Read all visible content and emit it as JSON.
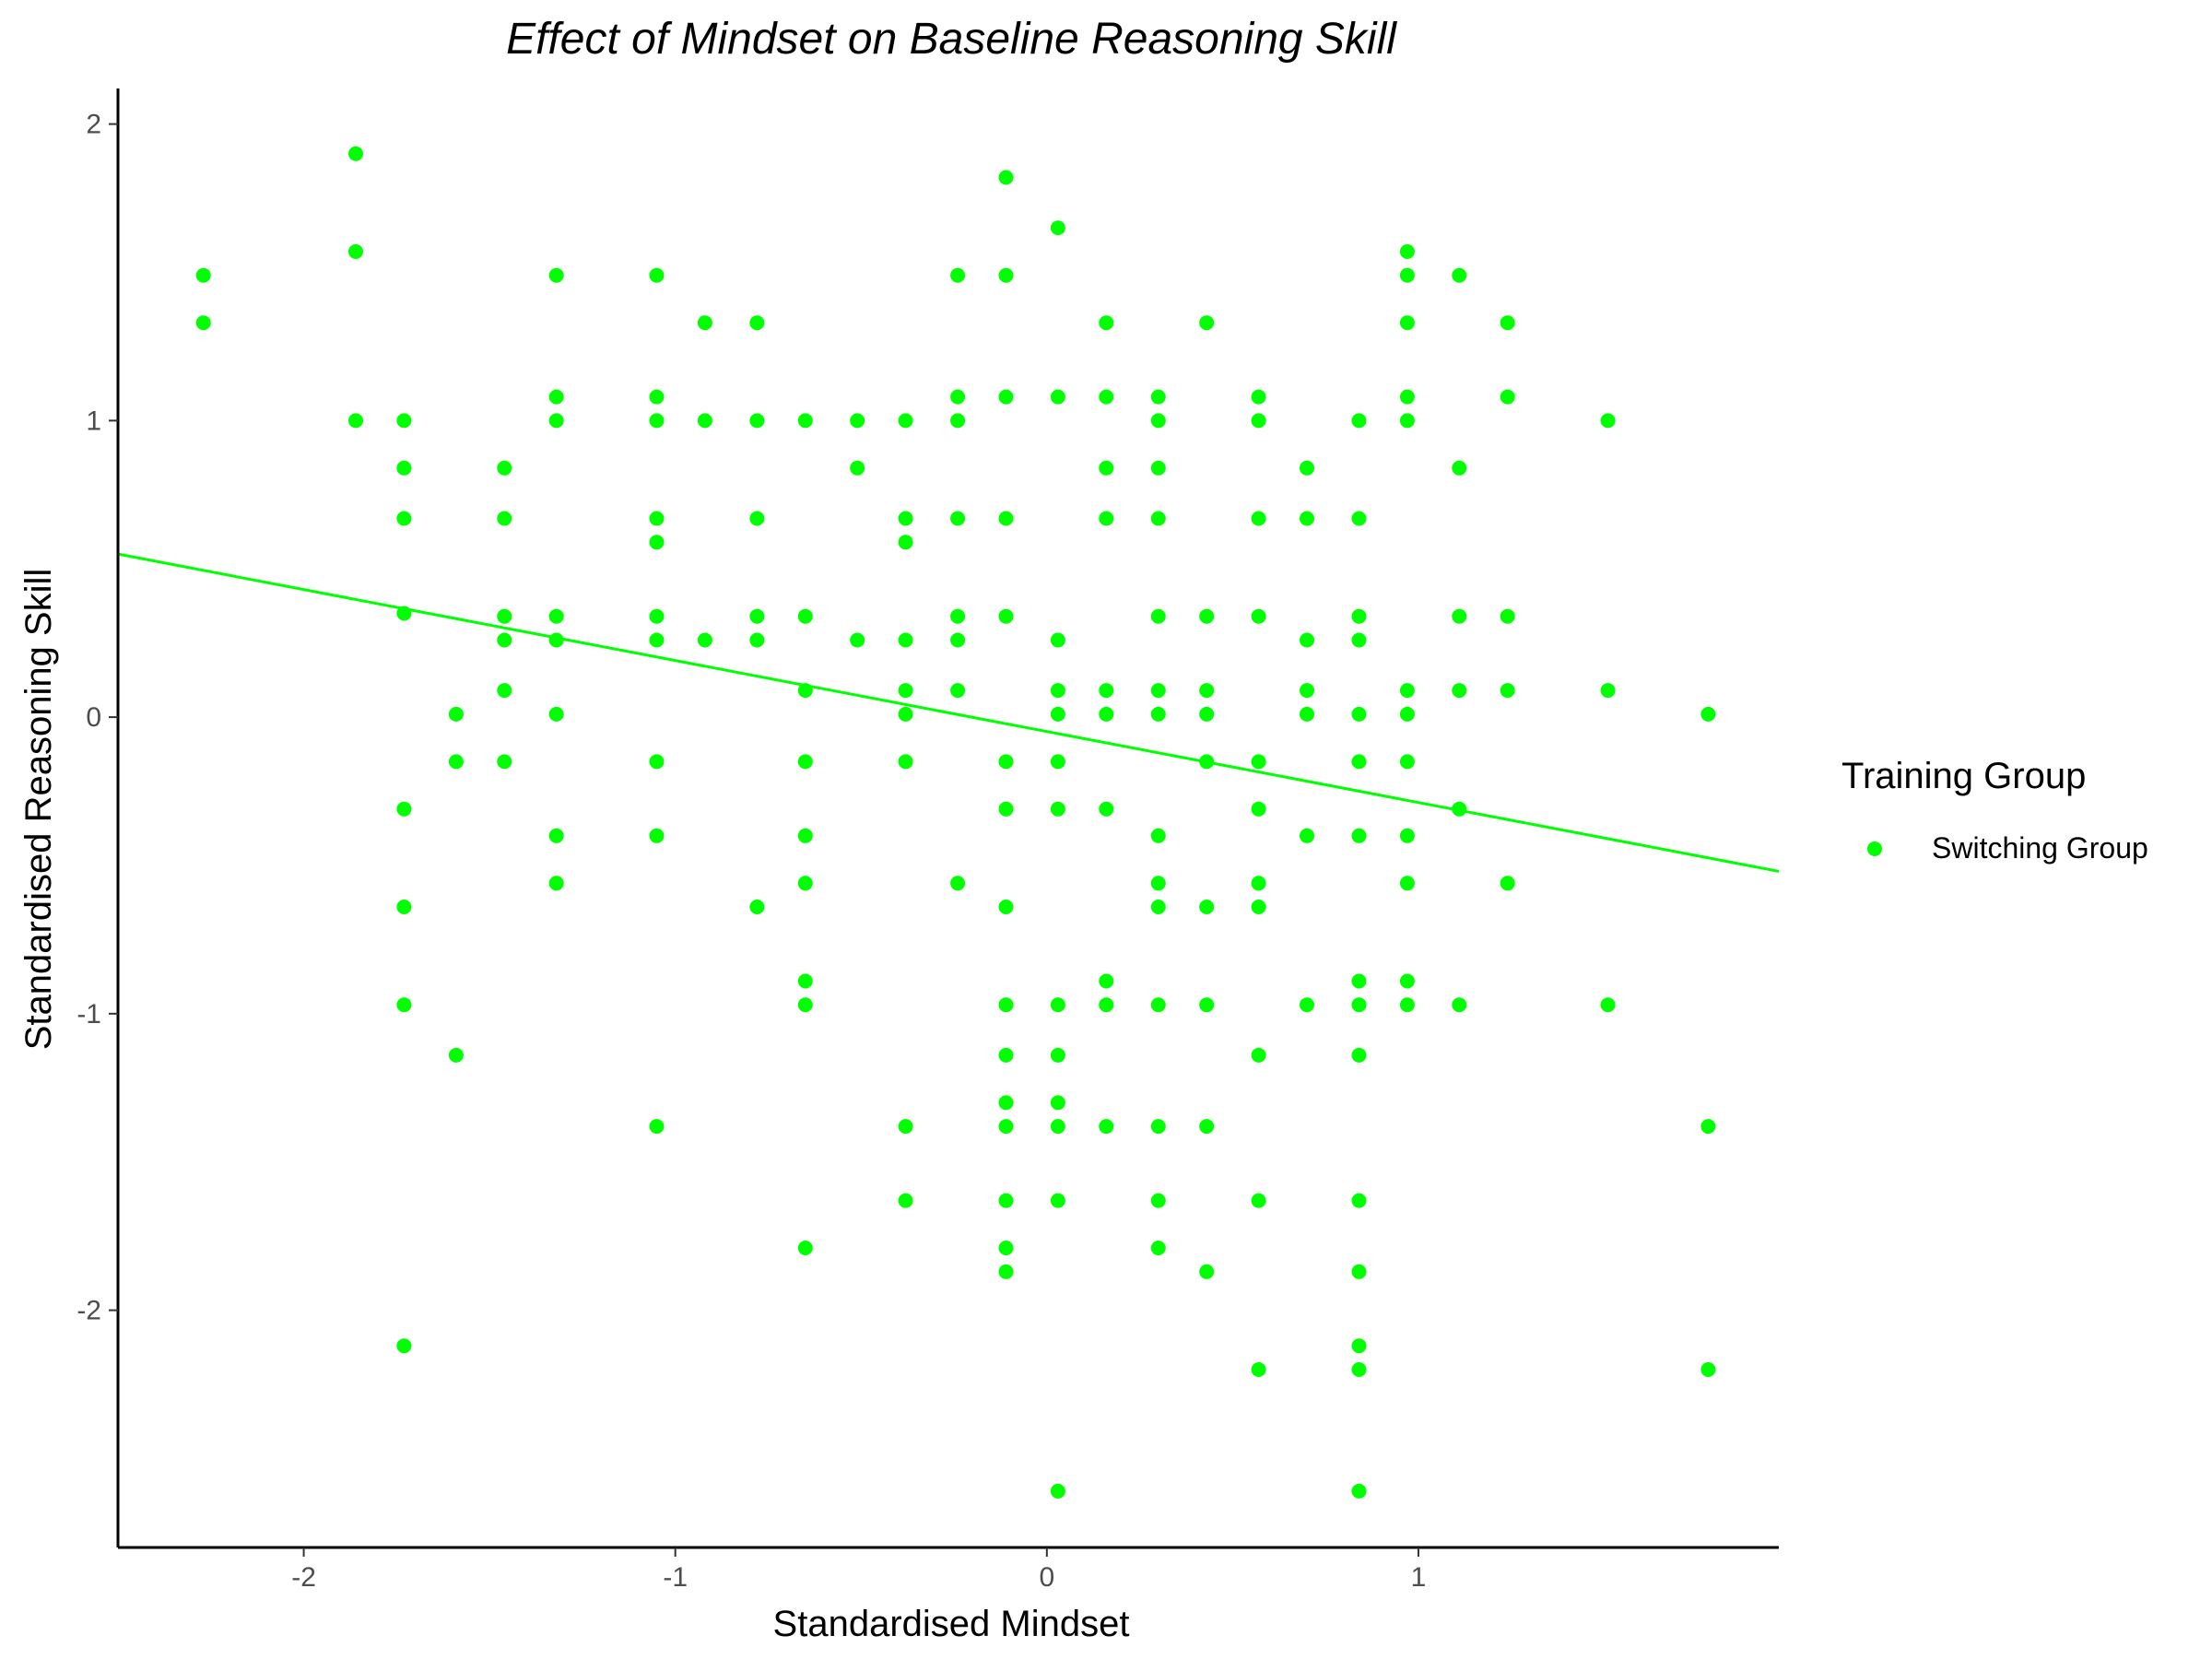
{
  "chart_data": {
    "type": "scatter",
    "title": "Effect of Mindset on Baseline Reasoning Skill",
    "xlabel": "Standardised Mindset",
    "ylabel": "Standardised Reasoning Skill",
    "xlim": [
      -2.5,
      1.97
    ],
    "ylim": [
      -2.8,
      2.12
    ],
    "x_ticks": [
      -2,
      -1,
      0,
      1
    ],
    "x_tick_labels": [
      "-2",
      "-1",
      "0",
      "1"
    ],
    "y_ticks": [
      -2,
      -1,
      0,
      1,
      2
    ],
    "y_tick_labels": [
      "-2",
      "-1",
      "0",
      "1",
      "2"
    ],
    "grid": false,
    "legend": {
      "title": "Training Group",
      "position": "right",
      "entries": [
        "Switching Group"
      ]
    },
    "series": [
      {
        "name": "Switching Group",
        "color": "#00ff00",
        "points": [
          [
            -2.27,
            1.49
          ],
          [
            -2.27,
            1.33
          ],
          [
            -1.86,
            1.9
          ],
          [
            -1.86,
            1.57
          ],
          [
            -1.86,
            1.0
          ],
          [
            -1.73,
            1.0
          ],
          [
            -1.73,
            0.84
          ],
          [
            -1.73,
            0.67
          ],
          [
            -1.73,
            0.35
          ],
          [
            -1.73,
            -0.31
          ],
          [
            -1.73,
            -0.64
          ],
          [
            -1.73,
            -0.97
          ],
          [
            -1.73,
            -2.12
          ],
          [
            -1.59,
            0.01
          ],
          [
            -1.59,
            -0.15
          ],
          [
            -1.59,
            -1.14
          ],
          [
            -1.46,
            0.84
          ],
          [
            -1.46,
            0.67
          ],
          [
            -1.46,
            0.34
          ],
          [
            -1.46,
            0.26
          ],
          [
            -1.46,
            0.09
          ],
          [
            -1.46,
            -0.15
          ],
          [
            -1.32,
            1.49
          ],
          [
            -1.32,
            1.08
          ],
          [
            -1.32,
            1.0
          ],
          [
            -1.32,
            0.34
          ],
          [
            -1.32,
            0.26
          ],
          [
            -1.32,
            0.01
          ],
          [
            -1.32,
            -0.4
          ],
          [
            -1.32,
            -0.56
          ],
          [
            -1.05,
            1.49
          ],
          [
            -1.05,
            1.08
          ],
          [
            -1.05,
            1.0
          ],
          [
            -1.05,
            0.67
          ],
          [
            -1.05,
            0.59
          ],
          [
            -1.05,
            0.34
          ],
          [
            -1.05,
            0.26
          ],
          [
            -1.05,
            -0.15
          ],
          [
            -1.05,
            -0.4
          ],
          [
            -1.05,
            -1.38
          ],
          [
            -0.92,
            1.33
          ],
          [
            -0.92,
            1.0
          ],
          [
            -0.92,
            0.26
          ],
          [
            -0.78,
            1.33
          ],
          [
            -0.78,
            1.0
          ],
          [
            -0.78,
            0.67
          ],
          [
            -0.78,
            0.34
          ],
          [
            -0.78,
            0.26
          ],
          [
            -0.78,
            -0.64
          ],
          [
            -0.65,
            1.0
          ],
          [
            -0.65,
            0.34
          ],
          [
            -0.65,
            0.09
          ],
          [
            -0.65,
            -0.15
          ],
          [
            -0.65,
            -0.4
          ],
          [
            -0.65,
            -0.56
          ],
          [
            -0.65,
            -0.89
          ],
          [
            -0.65,
            -0.97
          ],
          [
            -0.65,
            -1.79
          ],
          [
            -0.51,
            1.0
          ],
          [
            -0.51,
            0.84
          ],
          [
            -0.51,
            0.26
          ],
          [
            -0.38,
            1.0
          ],
          [
            -0.38,
            0.67
          ],
          [
            -0.38,
            0.59
          ],
          [
            -0.38,
            0.26
          ],
          [
            -0.38,
            0.09
          ],
          [
            -0.38,
            0.01
          ],
          [
            -0.38,
            -0.15
          ],
          [
            -0.38,
            -1.38
          ],
          [
            -0.38,
            -1.63
          ],
          [
            -0.24,
            1.49
          ],
          [
            -0.24,
            1.08
          ],
          [
            -0.24,
            1.0
          ],
          [
            -0.24,
            0.67
          ],
          [
            -0.24,
            0.34
          ],
          [
            -0.24,
            0.26
          ],
          [
            -0.24,
            0.09
          ],
          [
            -0.24,
            -0.56
          ],
          [
            -0.11,
            1.82
          ],
          [
            -0.11,
            1.49
          ],
          [
            -0.11,
            1.08
          ],
          [
            -0.11,
            0.67
          ],
          [
            -0.11,
            0.34
          ],
          [
            -0.11,
            -0.15
          ],
          [
            -0.11,
            -0.31
          ],
          [
            -0.11,
            -0.64
          ],
          [
            -0.11,
            -0.97
          ],
          [
            -0.11,
            -1.14
          ],
          [
            -0.11,
            -1.3
          ],
          [
            -0.11,
            -1.38
          ],
          [
            -0.11,
            -1.63
          ],
          [
            -0.11,
            -1.79
          ],
          [
            -0.11,
            -1.87
          ],
          [
            0.03,
            1.65
          ],
          [
            0.03,
            1.08
          ],
          [
            0.03,
            0.26
          ],
          [
            0.03,
            0.09
          ],
          [
            0.03,
            0.01
          ],
          [
            0.03,
            -0.15
          ],
          [
            0.03,
            -0.31
          ],
          [
            0.03,
            -0.97
          ],
          [
            0.03,
            -1.14
          ],
          [
            0.03,
            -1.3
          ],
          [
            0.03,
            -1.38
          ],
          [
            0.03,
            -1.63
          ],
          [
            0.03,
            -2.61
          ],
          [
            0.16,
            1.33
          ],
          [
            0.16,
            1.08
          ],
          [
            0.16,
            0.84
          ],
          [
            0.16,
            0.67
          ],
          [
            0.16,
            0.09
          ],
          [
            0.16,
            0.01
          ],
          [
            0.16,
            -0.31
          ],
          [
            0.16,
            -0.89
          ],
          [
            0.16,
            -0.97
          ],
          [
            0.16,
            -1.38
          ],
          [
            0.3,
            1.08
          ],
          [
            0.3,
            1.0
          ],
          [
            0.3,
            0.84
          ],
          [
            0.3,
            0.67
          ],
          [
            0.3,
            0.34
          ],
          [
            0.3,
            0.09
          ],
          [
            0.3,
            0.01
          ],
          [
            0.3,
            -0.4
          ],
          [
            0.3,
            -0.56
          ],
          [
            0.3,
            -0.64
          ],
          [
            0.3,
            -0.97
          ],
          [
            0.3,
            -1.38
          ],
          [
            0.3,
            -1.63
          ],
          [
            0.3,
            -1.79
          ],
          [
            0.43,
            1.33
          ],
          [
            0.43,
            0.34
          ],
          [
            0.43,
            0.09
          ],
          [
            0.43,
            0.01
          ],
          [
            0.43,
            -0.15
          ],
          [
            0.43,
            -0.64
          ],
          [
            0.43,
            -0.97
          ],
          [
            0.43,
            -1.38
          ],
          [
            0.43,
            -1.87
          ],
          [
            0.57,
            1.08
          ],
          [
            0.57,
            1.0
          ],
          [
            0.57,
            0.67
          ],
          [
            0.57,
            0.34
          ],
          [
            0.57,
            -0.15
          ],
          [
            0.57,
            -0.31
          ],
          [
            0.57,
            -0.56
          ],
          [
            0.57,
            -0.64
          ],
          [
            0.57,
            -1.14
          ],
          [
            0.57,
            -1.63
          ],
          [
            0.57,
            -2.2
          ],
          [
            0.7,
            0.84
          ],
          [
            0.7,
            0.67
          ],
          [
            0.7,
            0.26
          ],
          [
            0.7,
            0.09
          ],
          [
            0.7,
            0.01
          ],
          [
            0.7,
            -0.4
          ],
          [
            0.7,
            -0.97
          ],
          [
            0.84,
            1.0
          ],
          [
            0.84,
            0.67
          ],
          [
            0.84,
            0.34
          ],
          [
            0.84,
            0.26
          ],
          [
            0.84,
            0.01
          ],
          [
            0.84,
            -0.15
          ],
          [
            0.84,
            -0.4
          ],
          [
            0.84,
            -0.89
          ],
          [
            0.84,
            -0.97
          ],
          [
            0.84,
            -1.14
          ],
          [
            0.84,
            -1.63
          ],
          [
            0.84,
            -1.87
          ],
          [
            0.84,
            -2.12
          ],
          [
            0.84,
            -2.2
          ],
          [
            0.84,
            -2.61
          ],
          [
            0.97,
            1.57
          ],
          [
            0.97,
            1.49
          ],
          [
            0.97,
            1.33
          ],
          [
            0.97,
            1.08
          ],
          [
            0.97,
            1.0
          ],
          [
            0.97,
            0.09
          ],
          [
            0.97,
            0.01
          ],
          [
            0.97,
            -0.15
          ],
          [
            0.97,
            -0.4
          ],
          [
            0.97,
            -0.56
          ],
          [
            0.97,
            -0.89
          ],
          [
            0.97,
            -0.97
          ],
          [
            1.11,
            1.49
          ],
          [
            1.11,
            0.84
          ],
          [
            1.11,
            0.34
          ],
          [
            1.11,
            0.09
          ],
          [
            1.11,
            -0.31
          ],
          [
            1.11,
            -0.97
          ],
          [
            1.24,
            1.33
          ],
          [
            1.24,
            1.08
          ],
          [
            1.24,
            0.34
          ],
          [
            1.24,
            0.09
          ],
          [
            1.24,
            -0.56
          ],
          [
            1.51,
            1.0
          ],
          [
            1.51,
            0.09
          ],
          [
            1.51,
            -0.97
          ],
          [
            1.78,
            0.01
          ],
          [
            1.78,
            -1.38
          ],
          [
            1.78,
            -2.2
          ]
        ]
      }
    ],
    "trendline": {
      "type": "linear",
      "color": "#00ff00",
      "x": [
        -2.5,
        1.97
      ],
      "y": [
        0.55,
        -0.52
      ]
    }
  }
}
